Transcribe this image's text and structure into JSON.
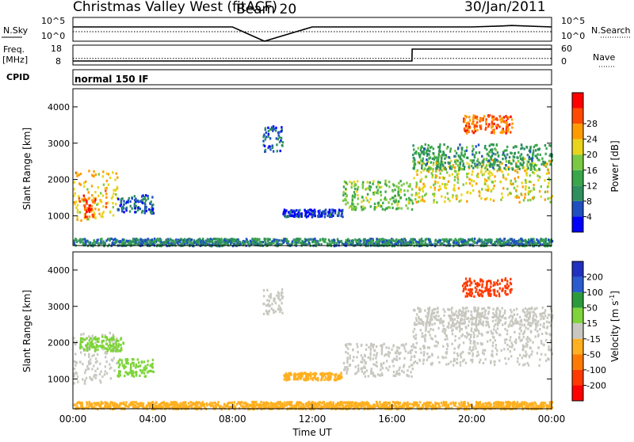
{
  "header": {
    "station": "Christmas Valley West (fitACF)",
    "beam": "Beam 20",
    "date": "30/Jan/2011"
  },
  "chart_data": [
    {
      "type": "line",
      "panel": "N.Sky / N.Search",
      "left_axis": {
        "label": "N.Sky",
        "ticks": [
          "10^5",
          "10^0"
        ]
      },
      "right_axis": {
        "label": "N.Search",
        "ticks": [
          "10^5",
          "10^0"
        ]
      },
      "series": [
        {
          "name": "N.Sky",
          "x": [
            0,
            2,
            4,
            6,
            8,
            9.6,
            12,
            14,
            16,
            17,
            18,
            20,
            21.5,
            22,
            24
          ],
          "y": [
            3,
            3,
            3,
            3,
            3,
            0,
            3,
            3,
            3,
            3,
            3,
            3,
            3.2,
            3.3,
            3
          ]
        },
        {
          "name": "N.Search",
          "x": [
            0,
            4,
            8,
            12,
            16,
            17,
            20,
            24
          ],
          "y": [
            2,
            2,
            2,
            2,
            2,
            2,
            2,
            2
          ]
        }
      ]
    },
    {
      "type": "line",
      "panel": "Freq / Nave",
      "left_axis": {
        "label_line1": "Freq.",
        "label_line2": "[MHz]",
        "ticks": [
          "18",
          "8"
        ]
      },
      "right_axis": {
        "label": "Nave",
        "ticks": [
          "60",
          "0"
        ]
      },
      "series": [
        {
          "name": "Freq.",
          "x": [
            0,
            4,
            8,
            12,
            16,
            17,
            17.01,
            20,
            24
          ],
          "y": [
            10,
            10,
            10,
            10,
            10,
            10,
            16,
            16,
            16
          ]
        },
        {
          "name": "Nave",
          "x": [
            0,
            4,
            8,
            12,
            16,
            20,
            24
          ],
          "y": [
            20,
            20,
            20,
            20,
            20,
            20,
            20
          ]
        }
      ]
    },
    {
      "type": "bar",
      "panel": "CPID",
      "label": "CPID",
      "text": "normal 150 IF"
    },
    {
      "type": "heatmap",
      "panel": "Power",
      "ylabel": "Slant Range [km]",
      "xlim": [
        0,
        24
      ],
      "ylim": [
        180,
        4500
      ],
      "yticks": [
        1000,
        2000,
        3000,
        4000
      ],
      "colorbar": {
        "label": "Power [dB]",
        "ticks": [
          4,
          8,
          12,
          16,
          20,
          24,
          28
        ],
        "range": [
          0,
          30
        ]
      },
      "regions": [
        {
          "t": [
            0,
            2.2
          ],
          "r": [
            900,
            2300
          ],
          "v": 20
        },
        {
          "t": [
            0.5,
            1.1
          ],
          "r": [
            1000,
            1600
          ],
          "v": 26
        },
        {
          "t": [
            2.2,
            4.0
          ],
          "r": [
            1100,
            1600
          ],
          "v": 6
        },
        {
          "t": [
            9.5,
            10.5
          ],
          "r": [
            2800,
            3500
          ],
          "v": 6
        },
        {
          "t": [
            10.5,
            13.5
          ],
          "r": [
            1000,
            1200
          ],
          "v": 4
        },
        {
          "t": [
            13.5,
            17
          ],
          "r": [
            1200,
            2000
          ],
          "v": 14
        },
        {
          "t": [
            17,
            24
          ],
          "r": [
            1400,
            2600
          ],
          "v": 18
        },
        {
          "t": [
            17,
            24
          ],
          "r": [
            2300,
            3000
          ],
          "v": 10
        },
        {
          "t": [
            19.5,
            22
          ],
          "r": [
            3300,
            3800
          ],
          "v": 24
        },
        {
          "t": [
            0,
            24
          ],
          "r": [
            200,
            400
          ],
          "v": 8
        }
      ]
    },
    {
      "type": "heatmap",
      "panel": "Velocity",
      "ylabel": "Slant Range [km]",
      "xlabel": "Time UT",
      "xlim": [
        0,
        24
      ],
      "ylim": [
        180,
        4500
      ],
      "yticks": [
        1000,
        2000,
        3000,
        4000
      ],
      "xticks": [
        "00:00",
        "04:00",
        "08:00",
        "12:00",
        "16:00",
        "20:00",
        "00:00"
      ],
      "colorbar": {
        "label": "Velocity [m s",
        "label_sup": "-1",
        "label_close": "]",
        "ticks": [
          200,
          100,
          50,
          15,
          -15,
          -50,
          -100,
          -200
        ],
        "range": [
          -250,
          250
        ]
      },
      "regions": [
        {
          "t": [
            0,
            2.2
          ],
          "r": [
            900,
            2300
          ],
          "v": 0
        },
        {
          "t": [
            0.3,
            2.5
          ],
          "r": [
            1800,
            2200
          ],
          "v": 40
        },
        {
          "t": [
            2.2,
            4.0
          ],
          "r": [
            1100,
            1600
          ],
          "v": 35
        },
        {
          "t": [
            9.5,
            10.5
          ],
          "r": [
            2800,
            3500
          ],
          "v": 0
        },
        {
          "t": [
            10.5,
            13.5
          ],
          "r": [
            1000,
            1200
          ],
          "v": -30
        },
        {
          "t": [
            13.5,
            17
          ],
          "r": [
            1100,
            2000
          ],
          "v": 0
        },
        {
          "t": [
            17,
            24
          ],
          "r": [
            1400,
            2600
          ],
          "v": 0
        },
        {
          "t": [
            17,
            24
          ],
          "r": [
            2500,
            3000
          ],
          "v": 0
        },
        {
          "t": [
            19.5,
            22
          ],
          "r": [
            3300,
            3800
          ],
          "v": -180
        },
        {
          "t": [
            0,
            24
          ],
          "r": [
            200,
            400
          ],
          "v": -40
        }
      ]
    }
  ],
  "colors": {
    "power_scale": [
      "#0000ff",
      "#1f4fc0",
      "#2f8f5f",
      "#3aa64a",
      "#7ac943",
      "#e8d41a",
      "#ff9b00",
      "#ff4a00",
      "#ff0000"
    ],
    "velocity_scale": [
      "#2030c0",
      "#2a5cd0",
      "#2a9a3a",
      "#7ed43a",
      "#c8c8c0",
      "#ffb020",
      "#ff7a00",
      "#ff3a00",
      "#ff0000"
    ]
  }
}
